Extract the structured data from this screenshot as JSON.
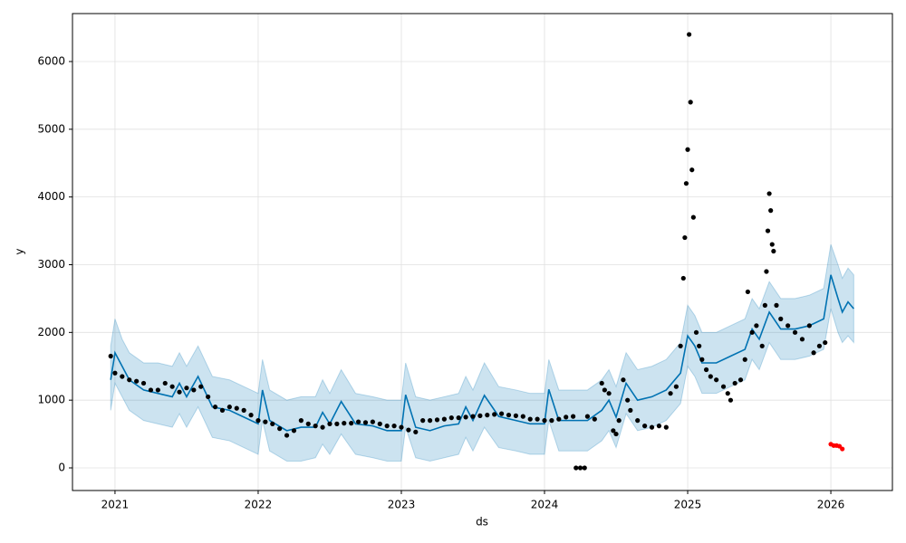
{
  "chart_data": {
    "type": "line",
    "xlabel": "ds",
    "ylabel": "y",
    "xlim": [
      2020.703,
      2026.43
    ],
    "xticks": [
      2021,
      2022,
      2023,
      2024,
      2025,
      2026
    ],
    "ylim": [
      -334,
      6708
    ],
    "yticks": [
      0,
      1000,
      2000,
      3000,
      4000,
      5000,
      6000
    ],
    "grid": true,
    "band_color": "#0072B2",
    "series": [
      {
        "color": "#0072B2",
        "x": [
          2020.97,
          2021.0,
          2021.05,
          2021.1,
          2021.2,
          2021.3,
          2021.4,
          2021.45,
          2021.5,
          2021.58,
          2021.68,
          2021.8,
          2021.9,
          2022.0,
          2022.03,
          2022.08,
          2022.2,
          2022.3,
          2022.4,
          2022.45,
          2022.5,
          2022.58,
          2022.68,
          2022.8,
          2022.9,
          2023.0,
          2023.03,
          2023.1,
          2023.2,
          2023.3,
          2023.4,
          2023.45,
          2023.5,
          2023.58,
          2023.68,
          2023.8,
          2023.9,
          2024.0,
          2024.03,
          2024.1,
          2024.2,
          2024.3,
          2024.4,
          2024.45,
          2024.5,
          2024.57,
          2024.65,
          2024.75,
          2024.85,
          2024.95,
          2025.0,
          2025.05,
          2025.1,
          2025.2,
          2025.3,
          2025.4,
          2025.45,
          2025.5,
          2025.57,
          2025.65,
          2025.75,
          2025.85,
          2025.95,
          2026.0,
          2026.05,
          2026.08,
          2026.12,
          2026.16
        ],
        "values": [
          1300,
          1700,
          1500,
          1300,
          1150,
          1100,
          1050,
          1250,
          1050,
          1350,
          900,
          850,
          750,
          650,
          1150,
          700,
          550,
          600,
          600,
          820,
          650,
          980,
          650,
          620,
          550,
          550,
          1080,
          600,
          550,
          620,
          650,
          900,
          700,
          1070,
          760,
          700,
          650,
          650,
          1160,
          700,
          700,
          700,
          850,
          1000,
          750,
          1250,
          1000,
          1050,
          1150,
          1400,
          1950,
          1800,
          1550,
          1550,
          1650,
          1750,
          2050,
          1900,
          2300,
          2050,
          2050,
          2100,
          2200,
          2850,
          2500,
          2300,
          2450,
          2350
        ],
        "lower": [
          850,
          1250,
          1050,
          850,
          700,
          650,
          600,
          800,
          600,
          900,
          450,
          400,
          300,
          200,
          700,
          250,
          100,
          100,
          150,
          350,
          200,
          500,
          200,
          150,
          100,
          100,
          600,
          150,
          100,
          150,
          200,
          450,
          250,
          600,
          300,
          250,
          200,
          200,
          700,
          250,
          250,
          250,
          400,
          550,
          300,
          800,
          550,
          600,
          700,
          950,
          1500,
          1350,
          1100,
          1100,
          1200,
          1300,
          1600,
          1450,
          1850,
          1600,
          1600,
          1650,
          1750,
          2350,
          2000,
          1850,
          1950,
          1850
        ],
        "upper": [
          1800,
          2200,
          1900,
          1700,
          1550,
          1550,
          1500,
          1700,
          1500,
          1800,
          1350,
          1300,
          1200,
          1100,
          1600,
          1150,
          1000,
          1050,
          1050,
          1300,
          1100,
          1450,
          1100,
          1050,
          1000,
          1000,
          1550,
          1050,
          1000,
          1050,
          1100,
          1350,
          1150,
          1550,
          1200,
          1150,
          1100,
          1100,
          1600,
          1150,
          1150,
          1150,
          1300,
          1450,
          1200,
          1700,
          1450,
          1500,
          1600,
          1850,
          2400,
          2250,
          2000,
          2000,
          2100,
          2200,
          2500,
          2350,
          2750,
          2500,
          2500,
          2550,
          2650,
          3300,
          3000,
          2800,
          2950,
          2850
        ]
      },
      {
        "color": "#000000",
        "x": [
          2020.97,
          2021.0,
          2021.05,
          2021.1,
          2021.15,
          2021.2,
          2021.25,
          2021.3,
          2021.35,
          2021.4,
          2021.45,
          2021.5,
          2021.55,
          2021.6,
          2021.65,
          2021.7,
          2021.75,
          2021.8,
          2021.85,
          2021.9,
          2021.95,
          2022.0,
          2022.05,
          2022.1,
          2022.15,
          2022.2,
          2022.25,
          2022.3,
          2022.35,
          2022.4,
          2022.45,
          2022.5,
          2022.55,
          2022.6,
          2022.65,
          2022.7,
          2022.75,
          2022.8,
          2022.85,
          2022.9,
          2022.95,
          2023.0,
          2023.05,
          2023.1,
          2023.15,
          2023.2,
          2023.25,
          2023.3,
          2023.35,
          2023.4,
          2023.45,
          2023.5,
          2023.55,
          2023.6,
          2023.65,
          2023.7,
          2023.75,
          2023.8,
          2023.85,
          2023.9,
          2023.95,
          2024.0,
          2024.05,
          2024.1,
          2024.15,
          2024.2,
          2024.22,
          2024.25,
          2024.28,
          2024.3,
          2024.35,
          2024.4,
          2024.42,
          2024.45,
          2024.48,
          2024.5,
          2024.52,
          2024.55,
          2024.58,
          2024.6,
          2024.65,
          2024.7,
          2024.75,
          2024.8,
          2024.85,
          2024.88,
          2024.92,
          2024.95,
          2024.97,
          2024.98,
          2024.99,
          2025.0,
          2025.01,
          2025.02,
          2025.03,
          2025.04,
          2025.06,
          2025.08,
          2025.1,
          2025.13,
          2025.16,
          2025.2,
          2025.25,
          2025.28,
          2025.3,
          2025.33,
          2025.37,
          2025.4,
          2025.42,
          2025.45,
          2025.48,
          2025.52,
          2025.54,
          2025.55,
          2025.56,
          2025.57,
          2025.58,
          2025.59,
          2025.6,
          2025.62,
          2025.65,
          2025.7,
          2025.75,
          2025.8,
          2025.85,
          2025.88,
          2025.92,
          2025.96
        ],
        "values": [
          1650,
          1400,
          1350,
          1300,
          1280,
          1250,
          1150,
          1150,
          1250,
          1200,
          1120,
          1180,
          1150,
          1200,
          1050,
          900,
          850,
          900,
          880,
          850,
          780,
          700,
          680,
          650,
          580,
          480,
          550,
          700,
          650,
          620,
          600,
          650,
          650,
          660,
          660,
          680,
          670,
          680,
          650,
          620,
          620,
          600,
          560,
          530,
          700,
          700,
          710,
          720,
          740,
          740,
          750,
          760,
          770,
          780,
          790,
          800,
          780,
          770,
          760,
          720,
          720,
          700,
          700,
          720,
          750,
          760,
          0,
          0,
          0,
          760,
          720,
          1250,
          1150,
          1100,
          550,
          500,
          700,
          1300,
          1000,
          850,
          700,
          620,
          600,
          620,
          600,
          1100,
          1200,
          1800,
          2800,
          3400,
          4200,
          4700,
          6400,
          5400,
          4400,
          3700,
          2000,
          1800,
          1600,
          1450,
          1350,
          1300,
          1200,
          1100,
          1000,
          1250,
          1300,
          1600,
          2600,
          2000,
          2100,
          1800,
          2400,
          2900,
          3500,
          4050,
          3800,
          3300,
          3200,
          2400,
          2200,
          2100,
          2000,
          1900,
          2100,
          1700,
          1800,
          1850
        ]
      },
      {
        "color": "#ff0000",
        "x": [
          2026.0,
          2026.02,
          2026.04,
          2026.06,
          2026.08
        ],
        "values": [
          350,
          330,
          330,
          320,
          280
        ]
      }
    ]
  }
}
